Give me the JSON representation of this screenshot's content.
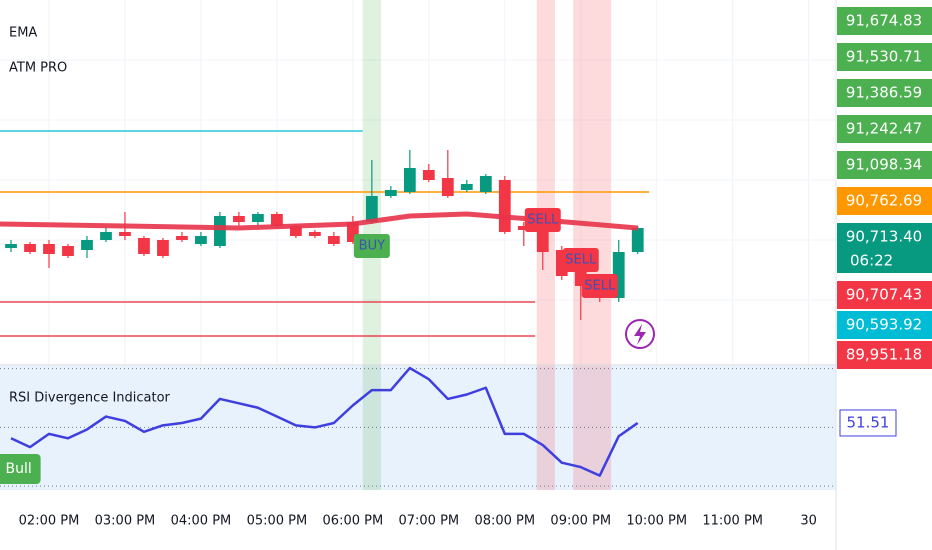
{
  "chart_data": [
    {
      "type": "candlestick",
      "indicators": [
        "EMA",
        "ATM PRO"
      ],
      "x": [
        13.5,
        13.75,
        14,
        14.25,
        14.5,
        14.75,
        15,
        15.25,
        15.5,
        15.75,
        16,
        16.25,
        16.5,
        16.75,
        17,
        17.25,
        17.5,
        17.75,
        18,
        18.25,
        18.5,
        18.75,
        19,
        19.25,
        19.5,
        19.75,
        20,
        20.25,
        20.5,
        20.75,
        21,
        21.25,
        21.5,
        21.75
      ],
      "open": [
        90678,
        90684,
        90684,
        90681,
        90675,
        90690,
        90702,
        90693,
        90690,
        90696,
        90684,
        90681,
        90726,
        90717,
        90729,
        90711,
        90702,
        90696,
        90717,
        90717,
        90756,
        90762,
        90795,
        90783,
        90765,
        90762,
        90780,
        90711,
        90708,
        90675,
        90642,
        90621,
        90603,
        90672
      ],
      "high": [
        90690,
        90687,
        90690,
        90684,
        90696,
        90708,
        90732,
        90696,
        90693,
        90702,
        90702,
        90732,
        90732,
        90732,
        90732,
        90714,
        90705,
        90702,
        90726,
        90810,
        90771,
        90825,
        90804,
        90825,
        90780,
        90789,
        90786,
        90717,
        90711,
        90681,
        90660,
        90630,
        90690,
        90711
      ],
      "low": [
        90672,
        90669,
        90648,
        90663,
        90663,
        90687,
        90690,
        90666,
        90663,
        90687,
        90681,
        90678,
        90711,
        90711,
        90708,
        90693,
        90693,
        90681,
        90684,
        90714,
        90753,
        90759,
        90777,
        90753,
        90762,
        90759,
        90699,
        90681,
        90645,
        90630,
        90570,
        90597,
        90597,
        90669
      ],
      "close": [
        90684,
        90672,
        90669,
        90666,
        90690,
        90702,
        90696,
        90669,
        90666,
        90690,
        90696,
        90726,
        90717,
        90729,
        90711,
        90696,
        90696,
        90684,
        90687,
        90756,
        90765,
        90798,
        90780,
        90756,
        90774,
        90786,
        90702,
        90705,
        90672,
        90636,
        90621,
        90603,
        90672,
        90708
      ],
      "up_color": "#089981",
      "down_color": "#f23645",
      "ema": {
        "color": "#e8334a",
        "x": [
          13.355,
          15,
          16.5,
          18,
          18.75,
          19.5,
          20.5,
          21.75
        ],
        "values": [
          90714,
          90711,
          90708,
          90714,
          90726,
          90729,
          90720,
          90708
        ]
      },
      "levels": [
        {
          "value": 90853.5,
          "from": 13.355,
          "to": 18.13,
          "color": "#26c6da"
        },
        {
          "value": 90762,
          "from": 13.355,
          "to": 21.9,
          "color": "#ff9800"
        },
        {
          "value": 90597,
          "from": 13.355,
          "to": 20.4,
          "color": "#e84855"
        },
        {
          "value": 90546,
          "from": 13.355,
          "to": 20.4,
          "color": "#e84855"
        }
      ],
      "bands": [
        {
          "from": 18.13,
          "to": 18.37,
          "color": "rgba(76,175,80,0.18)"
        },
        {
          "from": 20.42,
          "to": 20.66,
          "color": "rgba(242,54,69,0.18)"
        },
        {
          "from": 20.9,
          "to": 21.4,
          "color": "rgba(242,54,69,0.18)"
        }
      ],
      "signals": [
        {
          "x": 18.25,
          "label": "BUY",
          "color": "#4caf50"
        },
        {
          "x": 20.5,
          "label": "SELL",
          "color": "#f23645"
        },
        {
          "x": 21.0,
          "label": "SELL",
          "color": "#f23645"
        },
        {
          "x": 21.25,
          "label": "SELL",
          "color": "#f23645"
        }
      ],
      "price_labels": [
        {
          "label": "91,674.83",
          "color": "#4caf50"
        },
        {
          "label": "91,530.71",
          "color": "#4caf50"
        },
        {
          "label": "91,386.59",
          "color": "#4caf50"
        },
        {
          "label": "91,242.47",
          "color": "#4caf50"
        },
        {
          "label": "91,098.34",
          "color": "#4caf50"
        },
        {
          "label": "90,762.69",
          "color": "#ff9800"
        },
        {
          "label": "90,713.40",
          "sublabel": "06:22",
          "color": "#089981"
        },
        {
          "label": "90,707.43",
          "color": "#f23645"
        },
        {
          "label": "90,593.92",
          "color": "#00bcd4"
        },
        {
          "label": "89,951.18",
          "color": "#f23645"
        }
      ],
      "xlim": [
        13.355,
        24.36
      ],
      "ylim": [
        90507,
        91050
      ],
      "xticks": [
        {
          "value": 14,
          "label": "02:00 PM"
        },
        {
          "value": 15,
          "label": "03:00 PM"
        },
        {
          "value": 16,
          "label": "04:00 PM"
        },
        {
          "value": 17,
          "label": "05:00 PM"
        },
        {
          "value": 18,
          "label": "06:00 PM"
        },
        {
          "value": 19,
          "label": "07:00 PM"
        },
        {
          "value": 20,
          "label": "08:00 PM"
        },
        {
          "value": 21,
          "label": "09:00 PM"
        },
        {
          "value": 22,
          "label": "10:00 PM"
        },
        {
          "value": 23,
          "label": "11:00 PM"
        },
        {
          "value": 24,
          "label": "30"
        }
      ]
    },
    {
      "type": "line",
      "title": "RSI Divergence Indicator",
      "x": [
        13.5,
        13.75,
        14,
        14.25,
        14.5,
        14.75,
        15,
        15.25,
        15.5,
        15.75,
        16,
        16.25,
        16.5,
        16.75,
        17,
        17.25,
        17.5,
        17.75,
        18,
        18.25,
        18.5,
        18.75,
        19,
        19.25,
        19.5,
        19.75,
        20,
        20.25,
        20.5,
        20.75,
        21,
        21.25,
        21.5,
        21.75
      ],
      "values": [
        46.3,
        43.3,
        47.8,
        46.3,
        49.3,
        53.7,
        52.2,
        48.5,
        50.7,
        51.5,
        53.0,
        59.7,
        58.2,
        56.7,
        53.7,
        50.7,
        50,
        51.5,
        57.5,
        62.7,
        62.7,
        70.2,
        66.4,
        59.7,
        61.2,
        63.5,
        47.8,
        47.8,
        44.0,
        38.0,
        36.5,
        33.6,
        47.0,
        51.51
      ],
      "value_label": "51.51",
      "color": "#3f3fe0",
      "hlines": [
        70,
        50,
        30
      ],
      "ylim": [
        28.7,
        70.9
      ],
      "signal": {
        "x": 13.6,
        "label": "Bull",
        "color": "#4caf50"
      }
    }
  ]
}
